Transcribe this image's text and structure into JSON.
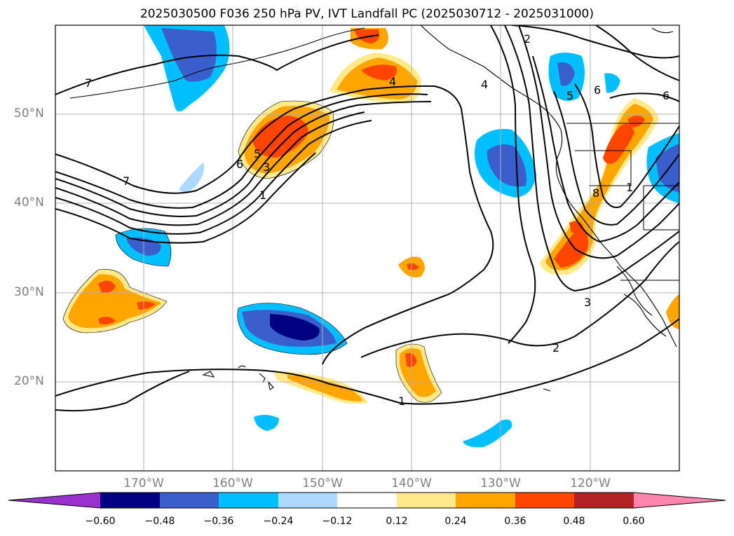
{
  "title": "2025030500 F036 250 hPa PV, IVT Landfall PC (2025030712 - 2025031000)",
  "latitude_labels": [
    "50°N",
    "40°N",
    "30°N",
    "20°N"
  ],
  "longitude_labels": [
    "170°W",
    "160°W",
    "150°W",
    "140°W",
    "130°W",
    "120°W"
  ],
  "contour_labels": [
    "7",
    "7",
    "6",
    "5",
    "4",
    "3",
    "2",
    "1",
    "1",
    "2",
    "3",
    "5",
    "6",
    "6",
    "1",
    "4",
    "8"
  ],
  "colorbar": {
    "ticks": [
      "−0.60",
      "−0.48",
      "−0.36",
      "−0.24",
      "−0.12",
      "0.12",
      "0.24",
      "0.36",
      "0.48",
      "0.60"
    ],
    "colors": [
      "#9932cc",
      "#000080",
      "#3a5fcd",
      "#00bfff",
      "#add8ff",
      "#ffffff",
      "#ffe98a",
      "#ffa500",
      "#ff4500",
      "#b22222",
      "#ff85ad"
    ]
  },
  "map_extent": {
    "lon_min": -180,
    "lon_max": -110,
    "lat_min": 10,
    "lat_max": 60
  }
}
